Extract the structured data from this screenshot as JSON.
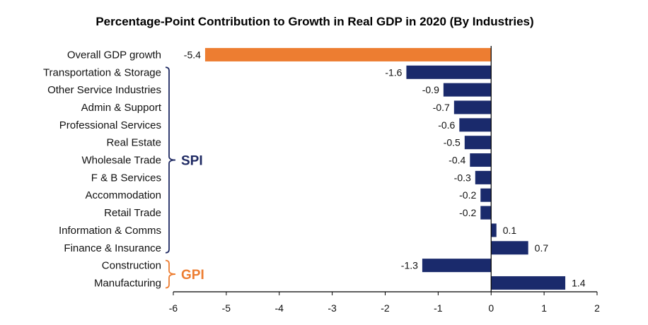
{
  "chart_data": {
    "type": "bar",
    "orientation": "horizontal",
    "title": "Percentage-Point Contribution to Growth in Real GDP in 2020 (By Industries)",
    "categories": [
      "Overall GDP growth",
      "Transportation & Storage",
      "Other Service Industries",
      "Admin & Support",
      "Professional Services",
      "Real Estate",
      "Wholesale Trade",
      "F & B Services",
      "Accommodation",
      "Retail Trade",
      "Information & Comms",
      "Finance & Insurance",
      "Construction",
      "Manufacturing"
    ],
    "values": [
      -5.4,
      -1.6,
      -0.9,
      -0.7,
      -0.6,
      -0.5,
      -0.4,
      -0.3,
      -0.2,
      -0.2,
      0.1,
      0.7,
      -1.3,
      1.4
    ],
    "value_labels": [
      "-5.4",
      "-1.6",
      "-0.9",
      "-0.7",
      "-0.6",
      "-0.5",
      "-0.4",
      "-0.3",
      "-0.2",
      "-0.2",
      "0.1",
      "0.7",
      "-1.3",
      "1.4"
    ],
    "highlight_index": 0,
    "xlim": [
      -6,
      2
    ],
    "xticks": [
      "-6",
      "-5",
      "-4",
      "-3",
      "-2",
      "-1",
      "0",
      "1",
      "2"
    ],
    "grid": false,
    "groups": [
      {
        "label": "SPI",
        "first": 1,
        "last": 11,
        "color": "#1f2a63"
      },
      {
        "label": "GPI",
        "first": 12,
        "last": 13,
        "color": "#ed7d31"
      }
    ],
    "colors": {
      "bar": "#1a2a6c",
      "highlight": "#ed7d31"
    }
  }
}
